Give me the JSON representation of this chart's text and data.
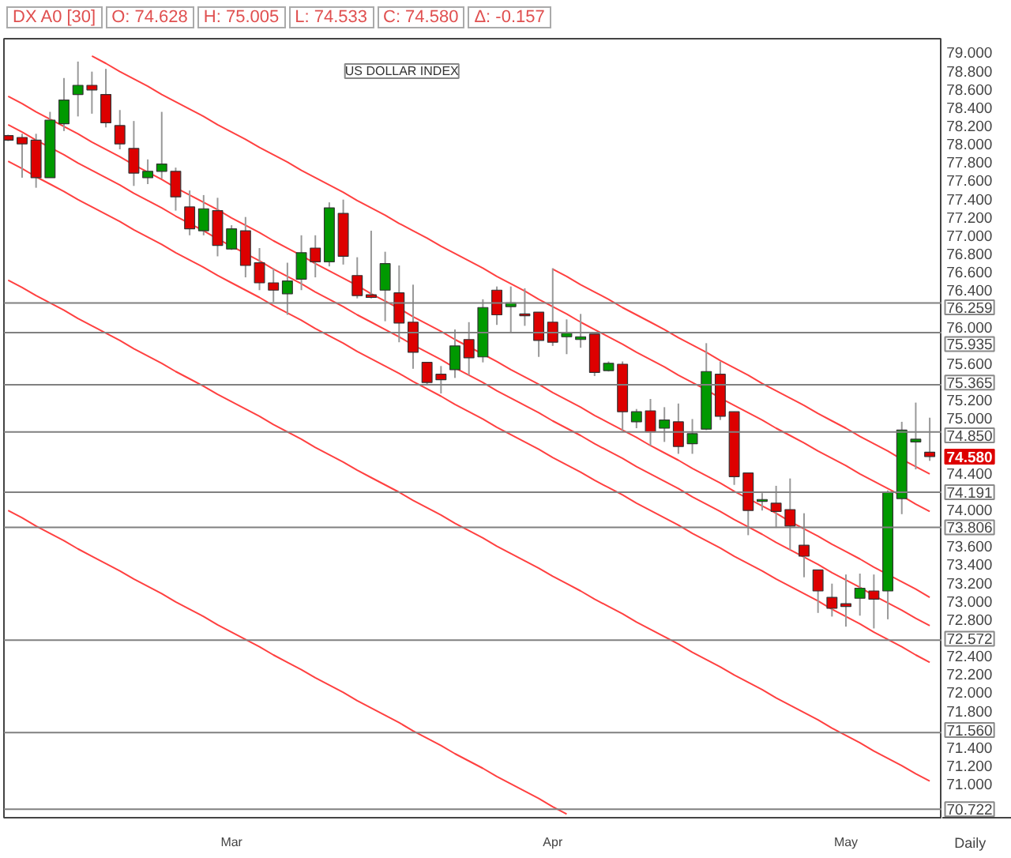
{
  "chart_data": {
    "type": "candlestick",
    "title": "US DOLLAR INDEX",
    "categories": [
      null,
      null,
      null,
      null,
      null,
      null,
      null,
      null,
      null,
      null,
      null,
      null,
      null,
      null,
      null,
      null,
      "Mar",
      null,
      null,
      null,
      null,
      null,
      null,
      null,
      null,
      null,
      null,
      null,
      null,
      null,
      null,
      null,
      null,
      null,
      null,
      null,
      null,
      null,
      null,
      "Apr",
      null,
      null,
      null,
      null,
      null,
      null,
      null,
      null,
      null,
      null,
      null,
      null,
      null,
      null,
      null,
      null,
      null,
      null,
      null,
      null,
      "May",
      null,
      null,
      null,
      null,
      null,
      null
    ],
    "ohlc": [
      [
        78.09,
        78.1,
        78.03,
        78.04
      ],
      [
        78.07,
        78.11,
        77.63,
        78.0
      ],
      [
        78.04,
        78.11,
        77.52,
        77.63
      ],
      [
        77.63,
        78.35,
        77.63,
        78.26
      ],
      [
        78.22,
        78.72,
        78.14,
        78.48
      ],
      [
        78.54,
        78.9,
        78.3,
        78.64
      ],
      [
        78.64,
        78.79,
        78.33,
        78.59
      ],
      [
        78.54,
        78.82,
        78.18,
        78.23
      ],
      [
        78.2,
        78.37,
        77.94,
        78.0
      ],
      [
        77.95,
        78.25,
        77.54,
        77.68
      ],
      [
        77.63,
        77.83,
        77.56,
        77.7
      ],
      [
        77.7,
        78.35,
        77.62,
        77.78
      ],
      [
        77.7,
        77.74,
        77.27,
        77.42
      ],
      [
        77.31,
        77.49,
        77.0,
        77.07
      ],
      [
        77.05,
        77.44,
        77.0,
        77.29
      ],
      [
        77.27,
        77.41,
        76.77,
        76.89
      ],
      [
        76.85,
        77.11,
        76.84,
        77.07
      ],
      [
        77.05,
        77.2,
        76.54,
        76.67
      ],
      [
        76.7,
        76.86,
        76.4,
        76.48
      ],
      [
        76.48,
        76.64,
        76.27,
        76.4
      ],
      [
        76.36,
        76.7,
        76.13,
        76.5
      ],
      [
        76.52,
        77.0,
        76.4,
        76.81
      ],
      [
        76.86,
        77.0,
        76.54,
        76.71
      ],
      [
        76.71,
        77.36,
        76.66,
        77.3
      ],
      [
        77.24,
        77.39,
        76.68,
        76.77
      ],
      [
        76.56,
        76.76,
        76.31,
        76.34
      ],
      [
        76.35,
        77.05,
        76.31,
        76.32
      ],
      [
        76.4,
        76.82,
        76.06,
        76.69
      ],
      [
        76.37,
        76.67,
        75.83,
        76.04
      ],
      [
        76.05,
        76.46,
        75.54,
        75.72
      ],
      [
        75.61,
        75.61,
        75.36,
        75.39
      ],
      [
        75.48,
        75.57,
        75.27,
        75.42
      ],
      [
        75.53,
        75.97,
        75.44,
        75.79
      ],
      [
        75.86,
        76.05,
        75.47,
        75.66
      ],
      [
        75.67,
        76.3,
        75.61,
        76.21
      ],
      [
        76.4,
        76.44,
        76.02,
        76.13
      ],
      [
        76.22,
        76.44,
        75.93,
        76.26
      ],
      [
        76.14,
        76.42,
        76.01,
        76.12
      ],
      [
        76.16,
        76.16,
        75.67,
        75.85
      ],
      [
        76.05,
        76.64,
        75.79,
        75.83
      ],
      [
        75.89,
        76.08,
        75.7,
        75.93
      ],
      [
        75.86,
        76.14,
        75.77,
        75.89
      ],
      [
        75.92,
        75.92,
        75.46,
        75.5
      ],
      [
        75.52,
        75.62,
        75.51,
        75.6
      ],
      [
        75.59,
        75.62,
        74.86,
        75.07
      ],
      [
        74.96,
        75.1,
        74.89,
        75.07
      ],
      [
        75.08,
        75.21,
        74.7,
        74.85
      ],
      [
        74.89,
        75.12,
        74.74,
        74.98
      ],
      [
        74.96,
        75.16,
        74.61,
        74.69
      ],
      [
        74.72,
        74.99,
        74.61,
        74.83
      ],
      [
        74.88,
        75.82,
        74.87,
        75.51
      ],
      [
        75.48,
        75.62,
        74.98,
        75.02
      ],
      [
        75.07,
        75.07,
        74.27,
        74.36
      ],
      [
        74.4,
        74.4,
        73.72,
        73.99
      ],
      [
        74.09,
        74.18,
        73.99,
        74.11
      ],
      [
        74.07,
        74.26,
        73.8,
        73.98
      ],
      [
        74.0,
        74.34,
        73.56,
        73.82
      ],
      [
        73.61,
        73.96,
        73.26,
        73.49
      ],
      [
        73.34,
        73.34,
        72.87,
        73.11
      ],
      [
        73.04,
        73.19,
        72.83,
        72.92
      ],
      [
        72.97,
        73.29,
        72.72,
        72.94
      ],
      [
        73.03,
        73.3,
        72.84,
        73.14
      ],
      [
        73.11,
        73.29,
        72.7,
        73.02
      ],
      [
        73.11,
        74.21,
        72.8,
        74.19
      ],
      [
        74.12,
        74.96,
        73.95,
        74.87
      ],
      [
        74.74,
        75.17,
        74.44,
        74.77
      ],
      [
        74.628,
        75.005,
        74.533,
        74.58
      ]
    ],
    "colors": [
      "#dd0000",
      "#dd0000",
      "#dd0000",
      "#009900",
      "#009900",
      "#009900",
      "#dd0000",
      "#dd0000",
      "#dd0000",
      "#dd0000",
      "#009900",
      "#009900",
      "#dd0000",
      "#dd0000",
      "#009900",
      "#dd0000",
      "#009900",
      "#dd0000",
      "#dd0000",
      "#dd0000",
      "#009900",
      "#009900",
      "#dd0000",
      "#009900",
      "#dd0000",
      "#dd0000",
      "#dd0000",
      "#009900",
      "#dd0000",
      "#dd0000",
      "#dd0000",
      "#dd0000",
      "#009900",
      "#dd0000",
      "#009900",
      "#dd0000",
      "#009900",
      "#dd0000",
      "#dd0000",
      "#dd0000",
      "#009900",
      "#009900",
      "#dd0000",
      "#009900",
      "#dd0000",
      "#009900",
      "#dd0000",
      "#009900",
      "#dd0000",
      "#009900",
      "#009900",
      "#dd0000",
      "#dd0000",
      "#dd0000",
      "#009900",
      "#dd0000",
      "#dd0000",
      "#dd0000",
      "#dd0000",
      "#dd0000",
      "#dd0000",
      "#009900",
      "#dd0000",
      "#009900",
      "#009900",
      "#009900",
      "#dd0000"
    ],
    "series": [
      {
        "type": "line",
        "color": "#ff4040",
        "values": [
          null,
          null,
          null,
          null,
          null,
          null,
          78.96,
          78.88,
          78.79,
          78.71,
          78.63,
          78.54,
          78.46,
          78.38,
          78.3,
          78.21,
          78.13,
          78.05,
          77.96,
          77.88,
          77.8,
          77.71,
          77.63,
          77.55,
          77.47,
          77.38,
          77.3,
          77.22,
          77.13,
          77.05,
          76.97,
          76.88,
          76.8,
          76.72,
          76.64,
          76.55,
          76.47,
          76.39,
          76.3,
          76.22,
          76.14,
          76.05,
          75.97,
          75.89,
          75.81,
          75.72,
          75.64,
          75.56,
          75.47,
          75.39,
          75.31,
          75.22,
          75.14,
          75.06,
          74.98,
          74.89,
          74.81,
          74.73,
          74.64,
          74.56,
          74.48,
          74.39,
          74.31,
          74.23,
          74.15,
          74.06,
          73.98
        ]
      },
      {
        "type": "line",
        "color": "#ff4040",
        "values": [
          78.52,
          78.44,
          78.35,
          78.27,
          78.19,
          78.11,
          78.02,
          77.94,
          77.86,
          77.77,
          77.69,
          77.61,
          77.52,
          77.44,
          77.36,
          77.28,
          77.19,
          77.11,
          77.03,
          76.94,
          76.86,
          76.78,
          76.69,
          76.61,
          76.53,
          76.45,
          76.36,
          76.28,
          76.2,
          76.11,
          76.03,
          75.95,
          75.86,
          75.78,
          75.7,
          75.62,
          75.53,
          75.45,
          75.37,
          75.28,
          75.2,
          75.12,
          75.03,
          74.95,
          74.87,
          74.79,
          74.7,
          74.62,
          74.54,
          74.45,
          74.37,
          74.29,
          74.2,
          74.12,
          74.04,
          73.96,
          73.87,
          73.79,
          73.71,
          73.62,
          73.54,
          73.46,
          73.37,
          73.29,
          73.21,
          73.13,
          73.04
        ]
      },
      {
        "type": "line",
        "color": "#ff4040",
        "values": [
          78.21,
          78.13,
          78.04,
          77.96,
          77.88,
          77.79,
          77.71,
          77.63,
          77.55,
          77.46,
          77.38,
          77.3,
          77.21,
          77.13,
          77.05,
          76.96,
          76.88,
          76.8,
          76.72,
          76.63,
          76.55,
          76.47,
          76.38,
          76.3,
          76.22,
          76.13,
          76.05,
          75.97,
          75.89,
          75.8,
          75.72,
          75.64,
          75.55,
          75.47,
          75.39,
          75.3,
          75.22,
          75.14,
          75.06,
          74.97,
          74.89,
          74.81,
          74.72,
          74.64,
          74.56,
          74.47,
          74.39,
          74.31,
          74.23,
          74.14,
          74.06,
          73.98,
          73.89,
          73.81,
          73.73,
          73.64,
          73.56,
          73.48,
          73.4,
          73.31,
          73.23,
          73.15,
          73.06,
          72.98,
          72.9,
          72.81,
          72.73
        ]
      },
      {
        "type": "line",
        "color": "#ff4040",
        "values": [
          77.81,
          77.73,
          77.64,
          77.56,
          77.48,
          77.39,
          77.31,
          77.23,
          77.15,
          77.06,
          76.98,
          76.9,
          76.81,
          76.73,
          76.65,
          76.56,
          76.48,
          76.4,
          76.32,
          76.23,
          76.15,
          76.07,
          75.98,
          75.9,
          75.82,
          75.73,
          75.65,
          75.57,
          75.49,
          75.4,
          75.32,
          75.24,
          75.15,
          75.07,
          74.99,
          74.9,
          74.82,
          74.74,
          74.66,
          74.57,
          74.49,
          74.41,
          74.32,
          74.24,
          74.16,
          74.07,
          73.99,
          73.91,
          73.83,
          73.74,
          73.66,
          73.58,
          73.49,
          73.41,
          73.33,
          73.24,
          73.16,
          73.08,
          73.0,
          72.91,
          72.83,
          72.75,
          72.66,
          72.58,
          72.5,
          72.41,
          72.33
        ]
      },
      {
        "type": "line",
        "color": "#ff4040",
        "values": [
          76.51,
          76.43,
          76.34,
          76.26,
          76.18,
          76.09,
          76.01,
          75.93,
          75.85,
          75.76,
          75.68,
          75.6,
          75.51,
          75.43,
          75.35,
          75.26,
          75.18,
          75.1,
          75.02,
          74.93,
          74.85,
          74.77,
          74.68,
          74.6,
          74.52,
          74.43,
          74.35,
          74.27,
          74.19,
          74.1,
          74.02,
          73.94,
          73.85,
          73.77,
          73.69,
          73.6,
          73.52,
          73.44,
          73.36,
          73.27,
          73.19,
          73.11,
          73.02,
          72.94,
          72.86,
          72.77,
          72.69,
          72.61,
          72.53,
          72.44,
          72.36,
          72.28,
          72.19,
          72.11,
          72.03,
          71.94,
          71.86,
          71.78,
          71.7,
          71.61,
          71.53,
          71.45,
          71.36,
          71.28,
          71.2,
          71.11,
          71.03
        ]
      },
      {
        "type": "line",
        "color": "#ff4040",
        "values": [
          73.99,
          73.91,
          73.82,
          73.74,
          73.66,
          73.57,
          73.49,
          73.41,
          73.33,
          73.24,
          73.16,
          73.08,
          72.99,
          72.91,
          72.83,
          72.74,
          72.66,
          72.58,
          72.5,
          72.41,
          72.33,
          72.25,
          72.16,
          72.08,
          72.0,
          71.91,
          71.83,
          71.75,
          71.67,
          71.58,
          71.5,
          71.42,
          71.33,
          71.25,
          71.17,
          71.08,
          71.0,
          70.92,
          70.84,
          70.75,
          70.67,
          null,
          null,
          null,
          null,
          null,
          null,
          null,
          null,
          null,
          null,
          null,
          null,
          null,
          null,
          null,
          null,
          null,
          null,
          null,
          null,
          null,
          null,
          null,
          null,
          null,
          null
        ]
      },
      {
        "type": "line",
        "color": "#ff4040",
        "values": [
          null,
          null,
          null,
          null,
          null,
          null,
          null,
          null,
          null,
          null,
          null,
          null,
          null,
          null,
          null,
          null,
          null,
          null,
          null,
          null,
          null,
          null,
          null,
          null,
          null,
          null,
          null,
          null,
          null,
          null,
          null,
          null,
          null,
          null,
          null,
          null,
          null,
          null,
          null,
          76.63,
          76.55,
          76.46,
          76.38,
          76.3,
          76.21,
          76.13,
          76.05,
          75.97,
          75.88,
          75.8,
          75.72,
          75.63,
          75.55,
          75.47,
          75.38,
          75.3,
          75.22,
          75.14,
          75.05,
          74.97,
          74.89,
          74.8,
          74.72,
          74.64,
          74.55,
          74.47,
          74.39
        ]
      }
    ],
    "ylim": [
      70.63,
      79.15
    ],
    "yticks": [
      {
        "value": 79,
        "label": "79.000"
      },
      {
        "value": 78.8,
        "label": "78.800"
      },
      {
        "value": 78.6,
        "label": "78.600"
      },
      {
        "value": 78.4,
        "label": "78.400"
      },
      {
        "value": 78.2,
        "label": "78.200"
      },
      {
        "value": 78,
        "label": "78.000"
      },
      {
        "value": 77.8,
        "label": "77.800"
      },
      {
        "value": 77.6,
        "label": "77.600"
      },
      {
        "value": 77.4,
        "label": "77.400"
      },
      {
        "value": 77.2,
        "label": "77.200"
      },
      {
        "value": 77,
        "label": "77.000"
      },
      {
        "value": 76.8,
        "label": "76.800"
      },
      {
        "value": 76.6,
        "label": "76.600"
      },
      {
        "value": 76.4,
        "label": "76.400"
      },
      {
        "value": 76,
        "label": "76.000"
      },
      {
        "value": 75.6,
        "label": "75.600"
      },
      {
        "value": 75.2,
        "label": "75.200"
      },
      {
        "value": 75,
        "label": "75.000"
      },
      {
        "value": 74.4,
        "label": "74.400"
      },
      {
        "value": 74,
        "label": "74.000"
      },
      {
        "value": 73.6,
        "label": "73.600"
      },
      {
        "value": 73.4,
        "label": "73.400"
      },
      {
        "value": 73.2,
        "label": "73.200"
      },
      {
        "value": 73,
        "label": "73.000"
      },
      {
        "value": 72.8,
        "label": "72.800"
      },
      {
        "value": 72.4,
        "label": "72.400"
      },
      {
        "value": 72.2,
        "label": "72.200"
      },
      {
        "value": 72,
        "label": "72.000"
      },
      {
        "value": 71.8,
        "label": "71.800"
      },
      {
        "value": 71.4,
        "label": "71.400"
      },
      {
        "value": 71.2,
        "label": "71.200"
      },
      {
        "value": 71,
        "label": "71.000"
      }
    ],
    "ref_lines": [
      {
        "axis": "y",
        "value": 76.259,
        "label": "76.259"
      },
      {
        "axis": "y",
        "value": 75.935,
        "label": "75.935"
      },
      {
        "axis": "y",
        "value": 75.365,
        "label": "75.365"
      },
      {
        "axis": "y",
        "value": 74.85,
        "label": "74.850"
      },
      {
        "axis": "y",
        "value": 74.191,
        "label": "74.191"
      },
      {
        "axis": "y",
        "value": 73.806,
        "label": "73.806"
      },
      {
        "axis": "y",
        "value": 72.572,
        "label": "72.572"
      },
      {
        "axis": "y",
        "value": 71.56,
        "label": "71.560"
      },
      {
        "axis": "y",
        "value": 70.722,
        "label": "70.722"
      }
    ],
    "annotations": [
      "DX A0 [30]",
      "O: 74.628",
      "H: 75.005",
      "L: 74.533",
      "C: 74.580",
      "Δ: -0.157",
      "74.580",
      "Daily"
    ],
    "grid": false
  }
}
